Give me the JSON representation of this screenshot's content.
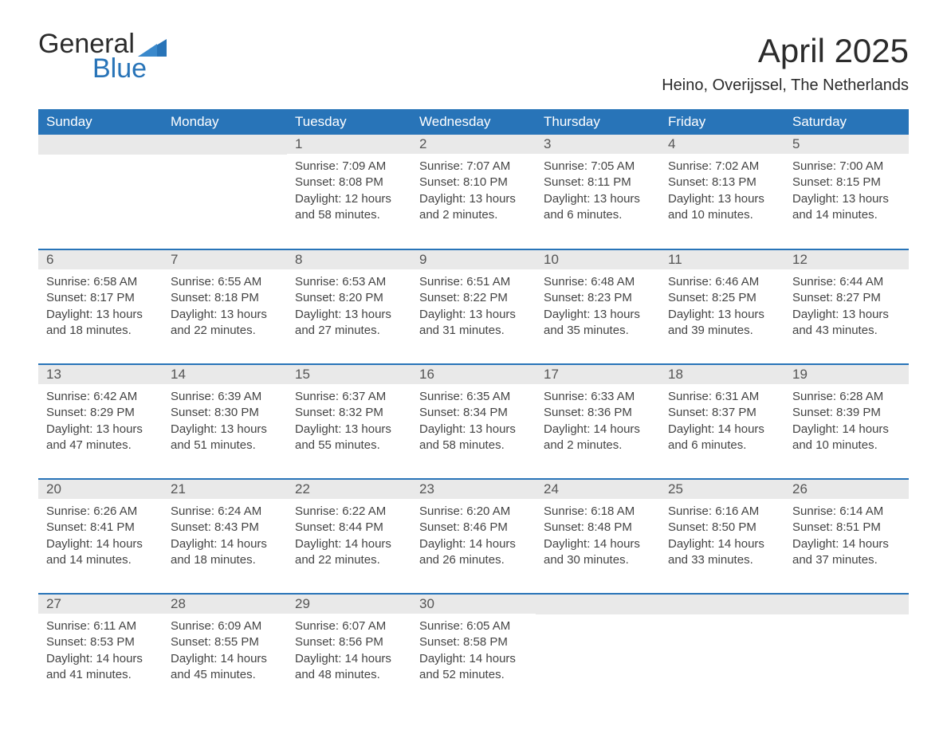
{
  "logo": {
    "top": "General",
    "bottom": "Blue",
    "mark_color": "#2874b8"
  },
  "title": "April 2025",
  "location": "Heino, Overijssel, The Netherlands",
  "colors": {
    "header_bg": "#2874b8",
    "header_text": "#ffffff",
    "daynum_bg": "#e9e9e9",
    "daynum_text": "#555555",
    "body_text": "#444444",
    "week_border": "#2874b8",
    "page_bg": "#ffffff"
  },
  "typography": {
    "title_fontsize": 42,
    "location_fontsize": 20,
    "dayheader_fontsize": 17,
    "daynum_fontsize": 17,
    "body_fontsize": 15
  },
  "layout": {
    "columns": 7,
    "rows": 5,
    "first_day_column_index": 2
  },
  "day_headers": [
    "Sunday",
    "Monday",
    "Tuesday",
    "Wednesday",
    "Thursday",
    "Friday",
    "Saturday"
  ],
  "days": [
    {
      "n": "1",
      "sunrise": "Sunrise: 7:09 AM",
      "sunset": "Sunset: 8:08 PM",
      "dl1": "Daylight: 12 hours",
      "dl2": "and 58 minutes."
    },
    {
      "n": "2",
      "sunrise": "Sunrise: 7:07 AM",
      "sunset": "Sunset: 8:10 PM",
      "dl1": "Daylight: 13 hours",
      "dl2": "and 2 minutes."
    },
    {
      "n": "3",
      "sunrise": "Sunrise: 7:05 AM",
      "sunset": "Sunset: 8:11 PM",
      "dl1": "Daylight: 13 hours",
      "dl2": "and 6 minutes."
    },
    {
      "n": "4",
      "sunrise": "Sunrise: 7:02 AM",
      "sunset": "Sunset: 8:13 PM",
      "dl1": "Daylight: 13 hours",
      "dl2": "and 10 minutes."
    },
    {
      "n": "5",
      "sunrise": "Sunrise: 7:00 AM",
      "sunset": "Sunset: 8:15 PM",
      "dl1": "Daylight: 13 hours",
      "dl2": "and 14 minutes."
    },
    {
      "n": "6",
      "sunrise": "Sunrise: 6:58 AM",
      "sunset": "Sunset: 8:17 PM",
      "dl1": "Daylight: 13 hours",
      "dl2": "and 18 minutes."
    },
    {
      "n": "7",
      "sunrise": "Sunrise: 6:55 AM",
      "sunset": "Sunset: 8:18 PM",
      "dl1": "Daylight: 13 hours",
      "dl2": "and 22 minutes."
    },
    {
      "n": "8",
      "sunrise": "Sunrise: 6:53 AM",
      "sunset": "Sunset: 8:20 PM",
      "dl1": "Daylight: 13 hours",
      "dl2": "and 27 minutes."
    },
    {
      "n": "9",
      "sunrise": "Sunrise: 6:51 AM",
      "sunset": "Sunset: 8:22 PM",
      "dl1": "Daylight: 13 hours",
      "dl2": "and 31 minutes."
    },
    {
      "n": "10",
      "sunrise": "Sunrise: 6:48 AM",
      "sunset": "Sunset: 8:23 PM",
      "dl1": "Daylight: 13 hours",
      "dl2": "and 35 minutes."
    },
    {
      "n": "11",
      "sunrise": "Sunrise: 6:46 AM",
      "sunset": "Sunset: 8:25 PM",
      "dl1": "Daylight: 13 hours",
      "dl2": "and 39 minutes."
    },
    {
      "n": "12",
      "sunrise": "Sunrise: 6:44 AM",
      "sunset": "Sunset: 8:27 PM",
      "dl1": "Daylight: 13 hours",
      "dl2": "and 43 minutes."
    },
    {
      "n": "13",
      "sunrise": "Sunrise: 6:42 AM",
      "sunset": "Sunset: 8:29 PM",
      "dl1": "Daylight: 13 hours",
      "dl2": "and 47 minutes."
    },
    {
      "n": "14",
      "sunrise": "Sunrise: 6:39 AM",
      "sunset": "Sunset: 8:30 PM",
      "dl1": "Daylight: 13 hours",
      "dl2": "and 51 minutes."
    },
    {
      "n": "15",
      "sunrise": "Sunrise: 6:37 AM",
      "sunset": "Sunset: 8:32 PM",
      "dl1": "Daylight: 13 hours",
      "dl2": "and 55 minutes."
    },
    {
      "n": "16",
      "sunrise": "Sunrise: 6:35 AM",
      "sunset": "Sunset: 8:34 PM",
      "dl1": "Daylight: 13 hours",
      "dl2": "and 58 minutes."
    },
    {
      "n": "17",
      "sunrise": "Sunrise: 6:33 AM",
      "sunset": "Sunset: 8:36 PM",
      "dl1": "Daylight: 14 hours",
      "dl2": "and 2 minutes."
    },
    {
      "n": "18",
      "sunrise": "Sunrise: 6:31 AM",
      "sunset": "Sunset: 8:37 PM",
      "dl1": "Daylight: 14 hours",
      "dl2": "and 6 minutes."
    },
    {
      "n": "19",
      "sunrise": "Sunrise: 6:28 AM",
      "sunset": "Sunset: 8:39 PM",
      "dl1": "Daylight: 14 hours",
      "dl2": "and 10 minutes."
    },
    {
      "n": "20",
      "sunrise": "Sunrise: 6:26 AM",
      "sunset": "Sunset: 8:41 PM",
      "dl1": "Daylight: 14 hours",
      "dl2": "and 14 minutes."
    },
    {
      "n": "21",
      "sunrise": "Sunrise: 6:24 AM",
      "sunset": "Sunset: 8:43 PM",
      "dl1": "Daylight: 14 hours",
      "dl2": "and 18 minutes."
    },
    {
      "n": "22",
      "sunrise": "Sunrise: 6:22 AM",
      "sunset": "Sunset: 8:44 PM",
      "dl1": "Daylight: 14 hours",
      "dl2": "and 22 minutes."
    },
    {
      "n": "23",
      "sunrise": "Sunrise: 6:20 AM",
      "sunset": "Sunset: 8:46 PM",
      "dl1": "Daylight: 14 hours",
      "dl2": "and 26 minutes."
    },
    {
      "n": "24",
      "sunrise": "Sunrise: 6:18 AM",
      "sunset": "Sunset: 8:48 PM",
      "dl1": "Daylight: 14 hours",
      "dl2": "and 30 minutes."
    },
    {
      "n": "25",
      "sunrise": "Sunrise: 6:16 AM",
      "sunset": "Sunset: 8:50 PM",
      "dl1": "Daylight: 14 hours",
      "dl2": "and 33 minutes."
    },
    {
      "n": "26",
      "sunrise": "Sunrise: 6:14 AM",
      "sunset": "Sunset: 8:51 PM",
      "dl1": "Daylight: 14 hours",
      "dl2": "and 37 minutes."
    },
    {
      "n": "27",
      "sunrise": "Sunrise: 6:11 AM",
      "sunset": "Sunset: 8:53 PM",
      "dl1": "Daylight: 14 hours",
      "dl2": "and 41 minutes."
    },
    {
      "n": "28",
      "sunrise": "Sunrise: 6:09 AM",
      "sunset": "Sunset: 8:55 PM",
      "dl1": "Daylight: 14 hours",
      "dl2": "and 45 minutes."
    },
    {
      "n": "29",
      "sunrise": "Sunrise: 6:07 AM",
      "sunset": "Sunset: 8:56 PM",
      "dl1": "Daylight: 14 hours",
      "dl2": "and 48 minutes."
    },
    {
      "n": "30",
      "sunrise": "Sunrise: 6:05 AM",
      "sunset": "Sunset: 8:58 PM",
      "dl1": "Daylight: 14 hours",
      "dl2": "and 52 minutes."
    }
  ]
}
